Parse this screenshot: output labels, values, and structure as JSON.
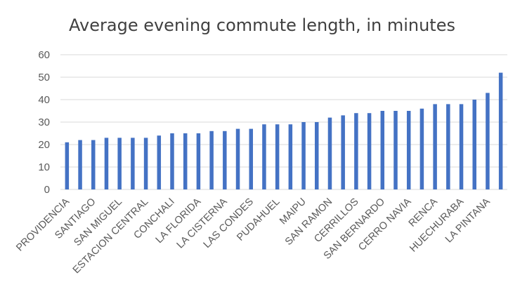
{
  "chart_data": {
    "type": "bar",
    "title": "Average evening commute length, in minutes",
    "xlabel": "",
    "ylabel": "",
    "ylim": [
      0,
      60
    ],
    "yticks": [
      0,
      10,
      20,
      30,
      40,
      50,
      60
    ],
    "grid": true,
    "legend": "none",
    "bar_color": "#4472c4",
    "categories": [
      "PROVIDENCIA",
      "",
      "SANTIAGO",
      "",
      "SAN MIGUEL",
      "",
      "ESTACION CENTRAL",
      "",
      "CONCHALI",
      "",
      "LA FLORIDA",
      "",
      "LA CISTERNA",
      "",
      "LAS CONDES",
      "",
      "PUDAHUEL",
      "",
      "MAIPU",
      "",
      "SAN RAMON",
      "",
      "CERRILLOS",
      "",
      "SAN BERNARDO",
      "",
      "CERRO NAVIA",
      "",
      "RENCA",
      "",
      "HUECHURABA",
      "",
      "LA PINTANA",
      ""
    ],
    "values": [
      21,
      22,
      22,
      23,
      23,
      23,
      23,
      24,
      25,
      25,
      25,
      26,
      26,
      27,
      27,
      29,
      29,
      29,
      30,
      30,
      32,
      33,
      34,
      34,
      35,
      35,
      35,
      36,
      38,
      38,
      38,
      40,
      43,
      52
    ]
  }
}
